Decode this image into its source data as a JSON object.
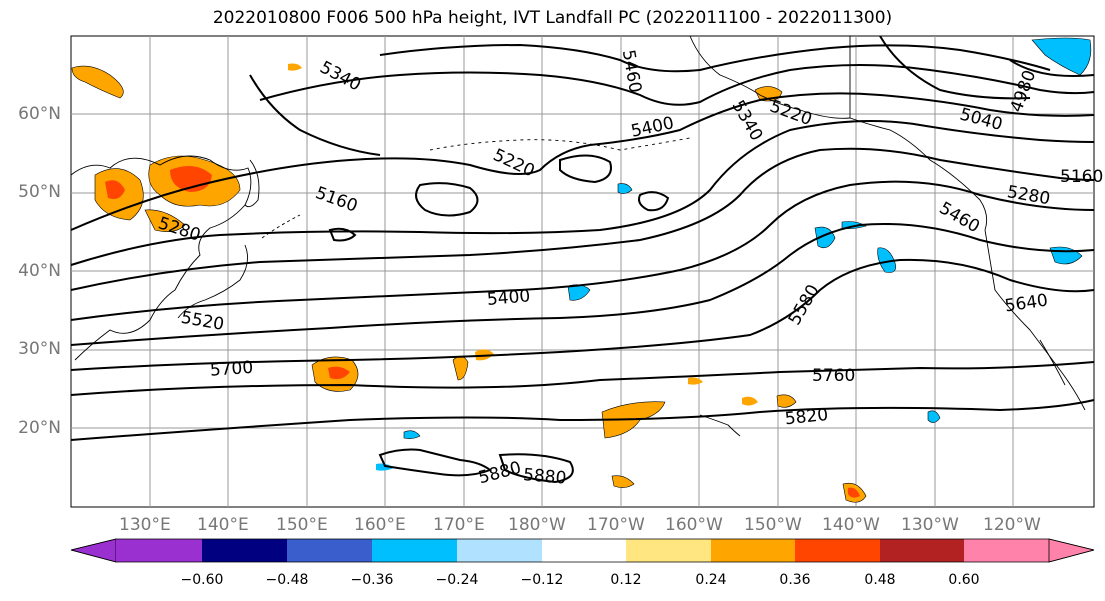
{
  "title": "2022010800 F006 500 hPa height, IVT Landfall PC (2022011100 - 2022011300)",
  "lat_labels": [
    "60°N",
    "50°N",
    "40°N",
    "30°N",
    "20°N"
  ],
  "lon_labels": [
    "130°E",
    "140°E",
    "150°E",
    "160°E",
    "170°E",
    "180°W",
    "170°W",
    "160°W",
    "150°W",
    "140°W",
    "130°W",
    "120°W"
  ],
  "colorbar": {
    "ticks": [
      "−0.60",
      "−0.48",
      "−0.36",
      "−0.24",
      "−0.12",
      "0.12",
      "0.24",
      "0.36",
      "0.48",
      "0.60"
    ],
    "colors": [
      "#9b30d0",
      "#000080",
      "#3a5fcd",
      "#00bfff",
      "#b0e2ff",
      "#ffffff",
      "#ffe680",
      "#ffa500",
      "#ff4500",
      "#b22222",
      "#ff82ab"
    ]
  },
  "contour_labels": [
    "5340",
    "5400",
    "5220",
    "5160",
    "5280",
    "5520",
    "5400",
    "5700",
    "5760",
    "5820",
    "5880",
    "5880",
    "5460",
    "5340",
    "5220",
    "5040",
    "4980",
    "5160",
    "5280",
    "5460",
    "5580",
    "5640"
  ],
  "colors": {
    "contour": "#000000",
    "grid": "#999999",
    "coast": "#000000"
  }
}
